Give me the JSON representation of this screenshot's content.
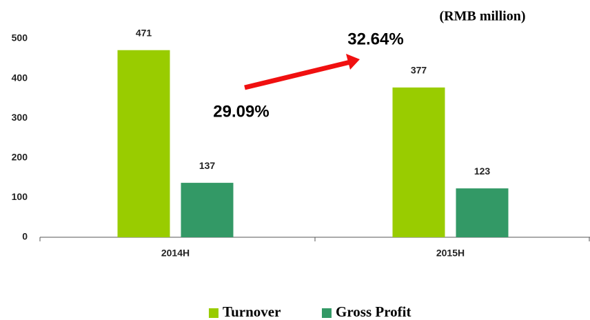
{
  "chart_data": {
    "type": "bar",
    "unit_label": "(RMB million)",
    "annotations": [
      "29.09%",
      "32.64%"
    ],
    "categories": [
      "2014H",
      "2015H"
    ],
    "series": [
      {
        "name": "Turnover",
        "color": "#99cc00",
        "values": [
          471,
          377
        ]
      },
      {
        "name": "Gross Profit",
        "color": "#339966",
        "values": [
          137,
          123
        ]
      }
    ],
    "ylim": [
      0,
      500
    ],
    "yticks": [
      0,
      100,
      200,
      300,
      400,
      500
    ],
    "legend": "bottom"
  }
}
